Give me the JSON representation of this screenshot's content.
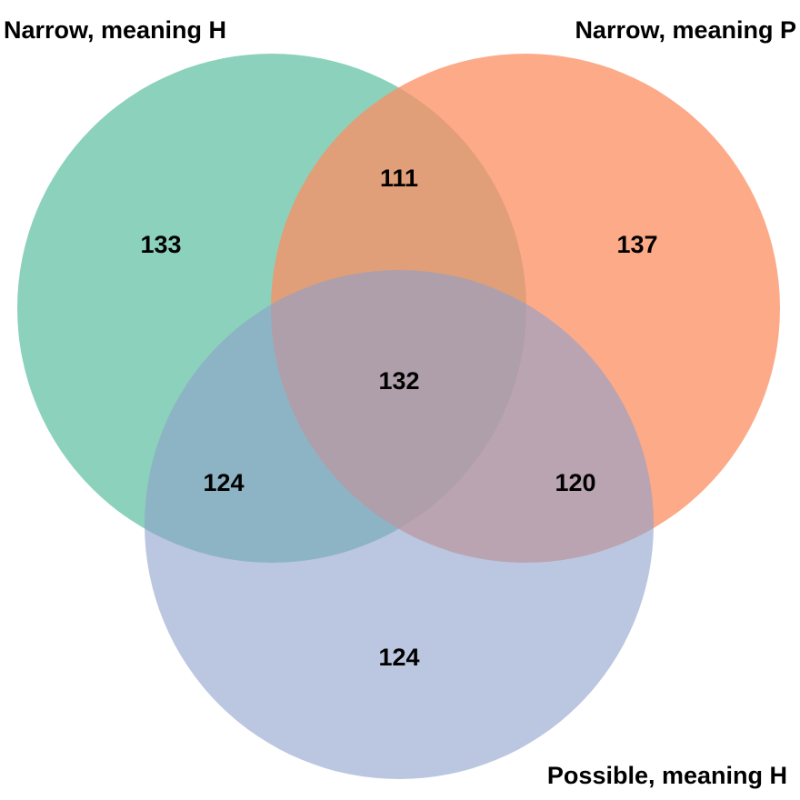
{
  "sets": [
    {
      "id": "narrow_h",
      "label": "Narrow, meaning H",
      "color": "#66c2a5"
    },
    {
      "id": "narrow_p",
      "label": "Narrow, meaning P",
      "color": "#fc8d62"
    },
    {
      "id": "possible_h",
      "label": "Possible, meaning H",
      "color": "#8da0cb"
    }
  ],
  "regions": {
    "narrow_h_only": "133",
    "narrow_p_only": "137",
    "possible_h_only": "124",
    "narrow_h_and_narrow_p": "111",
    "narrow_h_and_possible_h": "124",
    "narrow_p_and_possible_h": "120",
    "all_three": "132"
  }
}
